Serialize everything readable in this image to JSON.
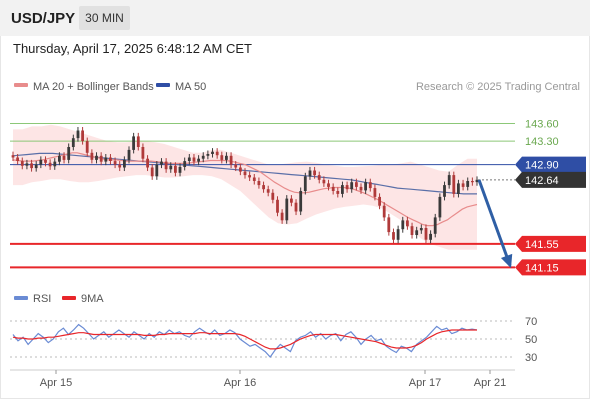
{
  "header": {
    "symbol": "USD/JPY",
    "interval": "30 MIN",
    "timestamp": "Thursday, April 17, 2025 6:48:12 AM CET"
  },
  "legend": {
    "ma20_label": "MA 20 + Bollinger Bands",
    "ma50_label": "MA 50",
    "copyright": "Research © 2025 Trading Central",
    "rsi_label": "RSI",
    "rsi_ma_label": "9MA"
  },
  "colors": {
    "up_candle": "#3a3a3a",
    "down_candle": "#b03a3a",
    "bollinger_fill": "#fde2e2",
    "ma20": "#e88c8c",
    "ma50": "#5a6fa8",
    "resistance": "#8cc878",
    "pivot": "#2f4ea5",
    "support": "#e8262a",
    "current": "#333333",
    "rsi": "#6a8bd4",
    "rsi_ma": "#e8262a",
    "arrow": "#2f5fa5"
  },
  "chart_data": [
    {
      "type": "candlestick",
      "title": "USD/JPY 30 MIN",
      "x_tick_labels": [
        "Apr 15",
        "Apr 16",
        "Apr 17",
        "Apr 21"
      ],
      "ylim": [
        140.9,
        144.0
      ],
      "levels": [
        {
          "value": 143.6,
          "label": "143.60",
          "kind": "resistance"
        },
        {
          "value": 143.3,
          "label": "143.30",
          "kind": "resistance"
        },
        {
          "value": 142.9,
          "label": "142.90",
          "kind": "pivot"
        },
        {
          "value": 142.64,
          "label": "142.64",
          "kind": "current"
        },
        {
          "value": 141.55,
          "label": "141.55",
          "kind": "support"
        },
        {
          "value": 141.15,
          "label": "141.15",
          "kind": "support"
        }
      ],
      "projection": {
        "from": 142.64,
        "to": 141.15
      },
      "close": [
        143.02,
        142.96,
        142.88,
        142.92,
        142.84,
        142.9,
        142.98,
        142.93,
        142.87,
        142.95,
        143.05,
        142.98,
        143.2,
        143.35,
        143.48,
        143.3,
        143.1,
        142.98,
        143.05,
        142.95,
        143.02,
        142.96,
        142.9,
        142.85,
        142.98,
        143.15,
        143.38,
        143.2,
        143.0,
        142.85,
        142.7,
        142.9,
        142.95,
        142.82,
        142.88,
        142.76,
        142.86,
        142.96,
        143.02,
        142.95,
        143.0,
        143.05,
        143.08,
        143.12,
        143.06,
        142.98,
        143.05,
        142.9,
        142.85,
        142.78,
        142.72,
        142.68,
        142.62,
        142.55,
        142.48,
        142.42,
        142.3,
        142.08,
        141.95,
        142.32,
        142.25,
        142.1,
        142.45,
        142.7,
        142.8,
        142.72,
        142.64,
        142.58,
        142.52,
        142.45,
        142.4,
        142.55,
        142.48,
        142.6,
        142.52,
        142.46,
        142.6,
        142.5,
        142.35,
        142.2,
        142.0,
        141.75,
        141.62,
        141.8,
        141.95,
        141.85,
        141.7,
        141.78,
        141.82,
        141.62,
        141.72,
        142.0,
        142.35,
        142.55,
        142.72,
        142.4,
        142.58,
        142.52,
        142.62,
        142.6,
        142.64
      ],
      "ma20": [
        142.98,
        142.97,
        142.96,
        142.96,
        142.96,
        142.97,
        142.98,
        143.0,
        143.02,
        143.04,
        143.06,
        143.08,
        143.1,
        143.1,
        143.08,
        143.06,
        143.04,
        143.02,
        143.0,
        142.98,
        142.98,
        142.98,
        142.97,
        142.96,
        142.96,
        142.96,
        142.96,
        142.96,
        142.96,
        142.95,
        142.94,
        142.93,
        142.92,
        142.92,
        142.92,
        142.92,
        142.93,
        142.94,
        142.95,
        142.96,
        142.97,
        142.97,
        142.97,
        142.97,
        142.96,
        142.94,
        142.92,
        142.9,
        142.86,
        142.82,
        142.78,
        142.72,
        142.66,
        142.6,
        142.55,
        142.5,
        142.46,
        142.43,
        142.42,
        142.42,
        142.43,
        142.45,
        142.47,
        142.49,
        142.5,
        142.51,
        142.51,
        142.51,
        142.5,
        142.48,
        142.45,
        142.42,
        142.38,
        142.34,
        142.3,
        142.25,
        142.2,
        142.15,
        142.1,
        142.05,
        142.0,
        141.96,
        141.92,
        141.88,
        141.86,
        141.86,
        141.88,
        141.92,
        141.96,
        142.02,
        142.08,
        142.14,
        142.18,
        142.2,
        142.22
      ],
      "ma50": [
        143.05,
        143.06,
        143.07,
        143.08,
        143.09,
        143.09,
        143.09,
        143.08,
        143.07,
        143.06,
        143.05,
        143.04,
        143.03,
        143.02,
        143.01,
        143.0,
        142.99,
        142.98,
        142.97,
        142.96,
        142.95,
        142.94,
        142.93,
        142.92,
        142.91,
        142.9,
        142.89,
        142.88,
        142.87,
        142.86,
        142.85,
        142.84,
        142.83,
        142.82,
        142.81,
        142.8,
        142.79,
        142.78,
        142.77,
        142.76,
        142.75,
        142.74,
        142.73,
        142.72,
        142.71,
        142.7,
        142.69,
        142.68,
        142.67,
        142.66,
        142.65,
        142.64,
        142.62,
        142.6,
        142.58,
        142.56,
        142.54,
        142.52,
        142.5,
        142.49,
        142.48,
        142.47,
        142.46,
        142.45,
        142.44,
        142.43,
        142.42,
        142.41,
        142.4,
        142.4,
        142.4
      ],
      "bollinger_upper": [
        143.5,
        143.5,
        143.55,
        143.55,
        143.58,
        143.55,
        143.5,
        143.45,
        143.4,
        143.35,
        143.3,
        143.28,
        143.28,
        143.3,
        143.3,
        143.28,
        143.25,
        143.2,
        143.15,
        143.1,
        143.1,
        143.15,
        143.15,
        143.1,
        143.05,
        143.0,
        142.95,
        142.9,
        142.9,
        142.92,
        142.94,
        142.95,
        142.93,
        142.9,
        142.88,
        142.86,
        142.86,
        142.87,
        142.88,
        142.9,
        142.9,
        142.92,
        142.95,
        142.9,
        142.85,
        142.8,
        142.78,
        142.9,
        143.0,
        143.0
      ],
      "bollinger_lower": [
        142.55,
        142.55,
        142.6,
        142.62,
        142.65,
        142.65,
        142.62,
        142.6,
        142.6,
        142.62,
        142.65,
        142.68,
        142.7,
        142.72,
        142.72,
        142.7,
        142.68,
        142.68,
        142.7,
        142.72,
        142.72,
        142.7,
        142.65,
        142.55,
        142.45,
        142.3,
        142.15,
        142.0,
        141.9,
        141.88,
        141.9,
        141.98,
        142.05,
        142.1,
        142.15,
        142.18,
        142.2,
        142.22,
        142.2,
        142.15,
        142.05,
        141.95,
        141.8,
        141.65,
        141.55,
        141.5,
        141.45,
        141.45,
        141.45,
        141.45
      ]
    },
    {
      "type": "line",
      "title": "RSI",
      "y_tick_labels": [
        "70",
        "50",
        "30"
      ],
      "ylim": [
        20,
        80
      ],
      "series": [
        {
          "name": "RSI",
          "values": [
            55,
            48,
            52,
            44,
            50,
            56,
            52,
            46,
            50,
            58,
            62,
            55,
            60,
            66,
            62,
            56,
            50,
            54,
            58,
            52,
            56,
            60,
            56,
            52,
            58,
            54,
            50,
            56,
            52,
            58,
            55,
            60,
            56,
            58,
            54,
            52,
            58,
            62,
            58,
            55,
            60,
            54,
            56,
            60,
            57,
            50,
            46,
            42,
            44,
            40,
            36,
            30,
            38,
            44,
            40,
            36,
            48,
            52,
            54,
            58,
            52,
            56,
            50,
            54,
            56,
            48,
            55,
            58,
            52,
            44,
            50,
            54,
            48,
            50,
            42,
            38,
            35,
            42,
            40,
            36,
            44,
            48,
            52,
            58,
            64,
            60,
            62,
            56,
            58,
            62,
            60,
            61,
            60
          ]
        },
        {
          "name": "9MA",
          "values": [
            52,
            51,
            51,
            50,
            50,
            51,
            51,
            52,
            52,
            53,
            54,
            55,
            56,
            57,
            57,
            56,
            55,
            55,
            55,
            55,
            55,
            55,
            55,
            55,
            55,
            55,
            54,
            54,
            54,
            55,
            55,
            56,
            56,
            56,
            56,
            56,
            56,
            57,
            57,
            56,
            56,
            56,
            56,
            56,
            56,
            55,
            53,
            50,
            47,
            44,
            41,
            39,
            39,
            40,
            42,
            44,
            47,
            50,
            52,
            54,
            55,
            55,
            55,
            55,
            55,
            54,
            53,
            52,
            51,
            50,
            49,
            48,
            47,
            45,
            43,
            41,
            40,
            40,
            40,
            41,
            43,
            46,
            50,
            53,
            56,
            58,
            59,
            60,
            60,
            60,
            60,
            60,
            60
          ]
        }
      ]
    }
  ]
}
